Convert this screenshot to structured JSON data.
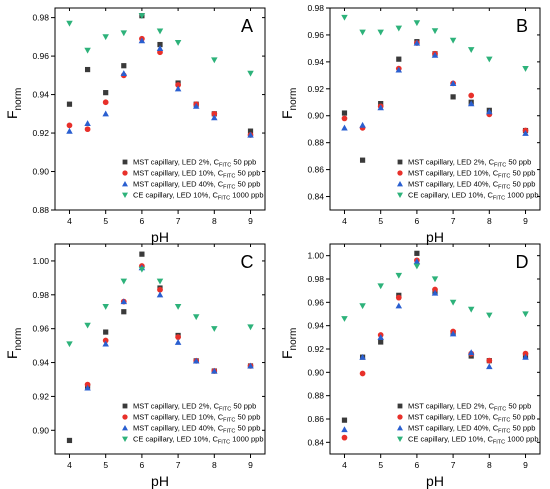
{
  "figure": {
    "legend_entries": [
      {
        "name": "MST capillary, LED 2%, C",
        "sub": "FITC",
        "suffix": " 50 ppb",
        "marker": "square",
        "color": "#3a3a3a"
      },
      {
        "name": "MST capillary, LED 10%, C",
        "sub": "FITC",
        "suffix": " 50 ppb",
        "marker": "circle",
        "color": "#e8302a"
      },
      {
        "name": "MST capillary, LED 40%, C",
        "sub": "FITC",
        "suffix": " 50 ppb",
        "marker": "triangle-up",
        "color": "#2a5fd0"
      },
      {
        "name": "CE capillary, LED 10%, C",
        "sub": "FITC",
        "suffix": " 1000 ppb",
        "marker": "triangle-down",
        "color": "#2db27a"
      }
    ]
  },
  "chart_data": [
    {
      "panel": "A",
      "type": "scatter",
      "xlabel": "pH",
      "ylabel_main": "F",
      "ylabel_sub": "norm",
      "xlim": [
        3.6,
        9.4
      ],
      "ylim": [
        0.88,
        0.985
      ],
      "xticks": [
        4,
        5,
        6,
        7,
        8,
        9
      ],
      "yticks": [
        0.88,
        0.9,
        0.92,
        0.94,
        0.96,
        0.98
      ],
      "ytick_labels": [
        "0.88",
        "0.90",
        "0.92",
        "0.94",
        "0.96",
        "0.98"
      ],
      "legend": "bottom-right",
      "x": [
        4,
        4.5,
        5,
        5.5,
        6,
        6.5,
        7,
        7.5,
        8,
        9
      ],
      "series": [
        {
          "values": [
            0.935,
            0.953,
            0.941,
            0.955,
            0.981,
            0.966,
            0.946,
            0.935,
            0.93,
            0.921
          ]
        },
        {
          "values": [
            0.924,
            0.922,
            0.936,
            0.95,
            0.969,
            0.962,
            0.945,
            0.935,
            0.93,
            0.919
          ]
        },
        {
          "values": [
            0.921,
            0.925,
            0.93,
            0.951,
            0.968,
            0.964,
            0.943,
            0.934,
            0.928,
            0.919
          ]
        },
        {
          "values": [
            0.977,
            0.963,
            0.97,
            0.972,
            0.981,
            0.973,
            0.967,
            null,
            0.958,
            0.951
          ]
        }
      ]
    },
    {
      "panel": "B",
      "type": "scatter",
      "xlabel": "pH",
      "ylabel_main": "F",
      "ylabel_sub": "norm",
      "xlim": [
        3.6,
        9.4
      ],
      "ylim": [
        0.83,
        0.98
      ],
      "xticks": [
        4,
        5,
        6,
        7,
        8,
        9
      ],
      "yticks": [
        0.84,
        0.86,
        0.88,
        0.9,
        0.92,
        0.94,
        0.96,
        0.98
      ],
      "ytick_labels": [
        "0.84",
        "0.86",
        "0.88",
        "0.90",
        "0.92",
        "0.94",
        "0.96",
        "0.98"
      ],
      "legend": "bottom-right",
      "x": [
        4,
        4.5,
        5,
        5.5,
        6,
        6.5,
        7,
        7.5,
        8,
        9
      ],
      "series": [
        {
          "values": [
            0.902,
            0.867,
            0.909,
            0.942,
            0.955,
            0.946,
            0.914,
            0.91,
            0.904,
            0.889
          ]
        },
        {
          "values": [
            0.898,
            0.891,
            0.907,
            0.935,
            0.954,
            0.946,
            0.924,
            0.915,
            0.901,
            0.889
          ]
        },
        {
          "values": [
            0.891,
            0.893,
            0.906,
            0.934,
            0.954,
            0.945,
            0.924,
            0.909,
            0.903,
            0.887
          ]
        },
        {
          "values": [
            0.973,
            0.962,
            0.962,
            0.965,
            0.969,
            0.963,
            0.956,
            0.949,
            0.942,
            0.935
          ]
        }
      ]
    },
    {
      "panel": "C",
      "type": "scatter",
      "xlabel": "pH",
      "ylabel_main": "F",
      "ylabel_sub": "norm",
      "xlim": [
        3.6,
        9.4
      ],
      "ylim": [
        0.886,
        1.01
      ],
      "xticks": [
        4,
        5,
        6,
        7,
        8,
        9
      ],
      "yticks": [
        0.9,
        0.92,
        0.94,
        0.96,
        0.98,
        1.0
      ],
      "ytick_labels": [
        "0.90",
        "0.92",
        "0.94",
        "0.96",
        "0.98",
        "1.00"
      ],
      "legend": "bottom-right",
      "x": [
        4,
        4.5,
        5,
        5.5,
        6,
        6.5,
        7,
        7.5,
        8,
        9
      ],
      "series": [
        {
          "values": [
            0.894,
            0.926,
            0.958,
            0.97,
            1.004,
            0.984,
            0.956,
            0.941,
            0.935,
            0.938
          ]
        },
        {
          "values": [
            null,
            0.927,
            0.953,
            0.976,
            0.997,
            0.983,
            0.955,
            0.941,
            0.935,
            0.938
          ]
        },
        {
          "values": [
            null,
            0.925,
            0.951,
            0.976,
            0.996,
            0.98,
            0.952,
            0.941,
            0.935,
            0.938
          ]
        },
        {
          "values": [
            0.951,
            0.962,
            0.973,
            0.988,
            0.995,
            0.988,
            0.973,
            0.967,
            0.96,
            0.961
          ]
        }
      ]
    },
    {
      "panel": "D",
      "type": "scatter",
      "xlabel": "pH",
      "ylabel_main": "F",
      "ylabel_sub": "norm",
      "xlim": [
        3.6,
        9.4
      ],
      "ylim": [
        0.83,
        1.01
      ],
      "xticks": [
        4,
        5,
        6,
        7,
        8,
        9
      ],
      "yticks": [
        0.84,
        0.86,
        0.88,
        0.9,
        0.92,
        0.94,
        0.96,
        0.98,
        1.0
      ],
      "ytick_labels": [
        "0.84",
        "0.86",
        "0.88",
        "0.90",
        "0.92",
        "0.94",
        "0.96",
        "0.98",
        "1.00"
      ],
      "legend": "bottom-right",
      "x": [
        4,
        4.5,
        5,
        5.5,
        6,
        6.5,
        7,
        7.5,
        8,
        9
      ],
      "series": [
        {
          "values": [
            0.859,
            0.913,
            0.926,
            0.966,
            1.002,
            0.969,
            0.934,
            0.914,
            0.91,
            0.914
          ]
        },
        {
          "values": [
            0.844,
            0.899,
            0.932,
            0.964,
            0.996,
            0.971,
            0.935,
            0.916,
            0.91,
            0.916
          ]
        },
        {
          "values": [
            0.851,
            0.913,
            0.93,
            0.957,
            0.995,
            0.968,
            0.933,
            0.917,
            0.905,
            0.913
          ]
        },
        {
          "values": [
            0.946,
            0.957,
            0.974,
            0.983,
            0.991,
            0.98,
            0.96,
            0.954,
            0.949,
            0.95
          ]
        }
      ]
    }
  ]
}
